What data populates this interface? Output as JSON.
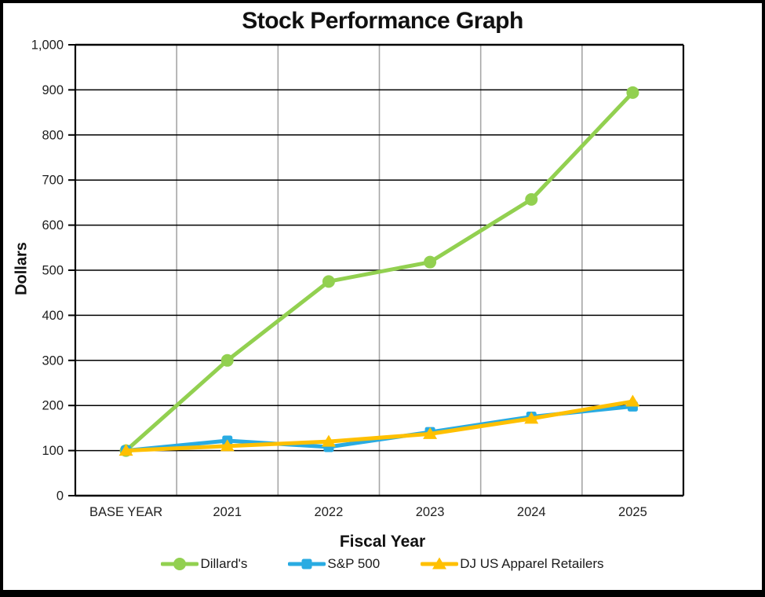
{
  "figure": {
    "background": "#ffffff",
    "border_color": "#000000"
  },
  "chart_data": {
    "type": "line",
    "title": "Stock Performance Graph",
    "xlabel": "Fiscal Year",
    "ylabel": "Dollars",
    "categories": [
      "BASE YEAR",
      "2021",
      "2022",
      "2023",
      "2024",
      "2025"
    ],
    "ylim": [
      0,
      1000
    ],
    "y_tick_step": 100,
    "y_tick_labels": [
      "1,000",
      "900",
      "800",
      "700",
      "600",
      "500",
      "400",
      "300",
      "200",
      "100",
      "0"
    ],
    "grid": {
      "horizontal": "on",
      "vertical": "on",
      "horizontal_color": "#000000",
      "vertical_color": "#a6a6a6"
    },
    "legend_position": "bottom",
    "text_color": "#212121",
    "series": [
      {
        "name": "Dillard's",
        "color": "#92d050",
        "marker": "circle",
        "values": [
          100,
          300,
          475,
          518,
          657,
          894
        ]
      },
      {
        "name": "S&P 500",
        "color": "#29abe2",
        "marker": "square",
        "values": [
          100,
          122,
          108,
          141,
          175,
          198
        ]
      },
      {
        "name": "DJ US Apparel Retailers",
        "color": "#ffc000",
        "marker": "triangle",
        "values": [
          100,
          110,
          120,
          137,
          171,
          209
        ]
      }
    ]
  }
}
